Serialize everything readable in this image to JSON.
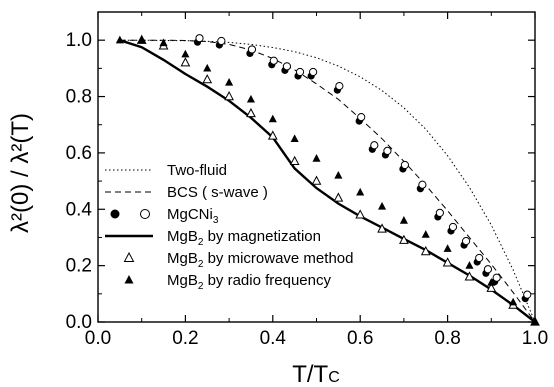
{
  "chart_data": {
    "type": "scatter",
    "title": "",
    "xlabel": "T/T",
    "xlabel_sub": "C",
    "ylabel": "λ²(0) / λ²(T)",
    "xlim": [
      0.0,
      1.0
    ],
    "ylim": [
      0.0,
      1.1
    ],
    "x_ticks": [
      "0.0",
      "0.2",
      "0.4",
      "0.6",
      "0.8",
      "1.0"
    ],
    "y_ticks": [
      "0.0",
      "0.2",
      "0.4",
      "0.6",
      "0.8",
      "1.0"
    ],
    "grid": false,
    "legend_position": "bottom-left",
    "series": [
      {
        "name": "Two-fluid",
        "style": "dotted-line",
        "x": [
          0.05,
          0.1,
          0.15,
          0.2,
          0.25,
          0.3,
          0.35,
          0.4,
          0.45,
          0.5,
          0.55,
          0.6,
          0.65,
          0.7,
          0.75,
          0.8,
          0.85,
          0.9,
          0.95,
          1.0
        ],
        "y": [
          1.0,
          1.0,
          0.999,
          0.998,
          0.996,
          0.992,
          0.985,
          0.974,
          0.959,
          0.938,
          0.908,
          0.87,
          0.821,
          0.76,
          0.684,
          0.59,
          0.478,
          0.344,
          0.185,
          0.0
        ]
      },
      {
        "name": "BCS ( s-wave )",
        "style": "dashed-line",
        "x": [
          0.05,
          0.1,
          0.15,
          0.2,
          0.25,
          0.3,
          0.35,
          0.4,
          0.45,
          0.5,
          0.55,
          0.6,
          0.65,
          0.7,
          0.75,
          0.8,
          0.85,
          0.9,
          0.95,
          1.0
        ],
        "y": [
          1.0,
          1.0,
          1.0,
          0.999,
          0.995,
          0.985,
          0.965,
          0.935,
          0.895,
          0.845,
          0.79,
          0.722,
          0.65,
          0.57,
          0.485,
          0.395,
          0.3,
          0.205,
          0.105,
          0.0
        ]
      },
      {
        "name": "MgCNi",
        "name_sub": "3",
        "style": "filled-open-circles",
        "x": [
          0.23,
          0.28,
          0.35,
          0.4,
          0.43,
          0.46,
          0.49,
          0.55,
          0.6,
          0.63,
          0.66,
          0.7,
          0.74,
          0.78,
          0.81,
          0.84,
          0.87,
          0.89,
          0.91,
          0.98
        ],
        "y": [
          1.0,
          0.99,
          0.96,
          0.92,
          0.9,
          0.88,
          0.88,
          0.83,
          0.72,
          0.62,
          0.6,
          0.55,
          0.48,
          0.38,
          0.33,
          0.28,
          0.22,
          0.18,
          0.15,
          0.09
        ]
      },
      {
        "name": "MgB",
        "name_sub": "2",
        "name_suffix": " by magnetization",
        "style": "solid-line",
        "x": [
          0.05,
          0.1,
          0.15,
          0.2,
          0.25,
          0.3,
          0.35,
          0.4,
          0.45,
          0.5,
          0.55,
          0.6,
          0.65,
          0.7,
          0.75,
          0.8,
          0.85,
          0.9,
          0.95,
          1.0
        ],
        "y": [
          1.0,
          0.975,
          0.93,
          0.88,
          0.835,
          0.785,
          0.725,
          0.655,
          0.545,
          0.475,
          0.42,
          0.375,
          0.335,
          0.295,
          0.255,
          0.21,
          0.165,
          0.115,
          0.06,
          0.0
        ]
      },
      {
        "name": "MgB",
        "name_sub": "2",
        "name_suffix": " by microwave method",
        "style": "open-triangles",
        "x": [
          0.1,
          0.15,
          0.2,
          0.25,
          0.3,
          0.35,
          0.4,
          0.45,
          0.5,
          0.55,
          0.6,
          0.65,
          0.7,
          0.75,
          0.8,
          0.85,
          0.9,
          0.95,
          1.0
        ],
        "y": [
          1.0,
          0.98,
          0.92,
          0.86,
          0.8,
          0.74,
          0.66,
          0.57,
          0.5,
          0.44,
          0.38,
          0.33,
          0.29,
          0.25,
          0.21,
          0.16,
          0.12,
          0.06,
          0.0
        ]
      },
      {
        "name": "MgB",
        "name_sub": "2",
        "name_suffix": " by radio frequency",
        "style": "filled-triangles",
        "x": [
          0.05,
          0.1,
          0.15,
          0.2,
          0.25,
          0.3,
          0.35,
          0.4,
          0.45,
          0.5,
          0.55,
          0.6,
          0.65,
          0.7,
          0.75,
          0.8,
          0.85,
          0.9,
          0.95,
          1.0
        ],
        "y": [
          1.0,
          1.0,
          0.99,
          0.95,
          0.9,
          0.85,
          0.79,
          0.72,
          0.65,
          0.58,
          0.52,
          0.46,
          0.41,
          0.36,
          0.31,
          0.26,
          0.2,
          0.14,
          0.07,
          0.0
        ]
      }
    ]
  }
}
